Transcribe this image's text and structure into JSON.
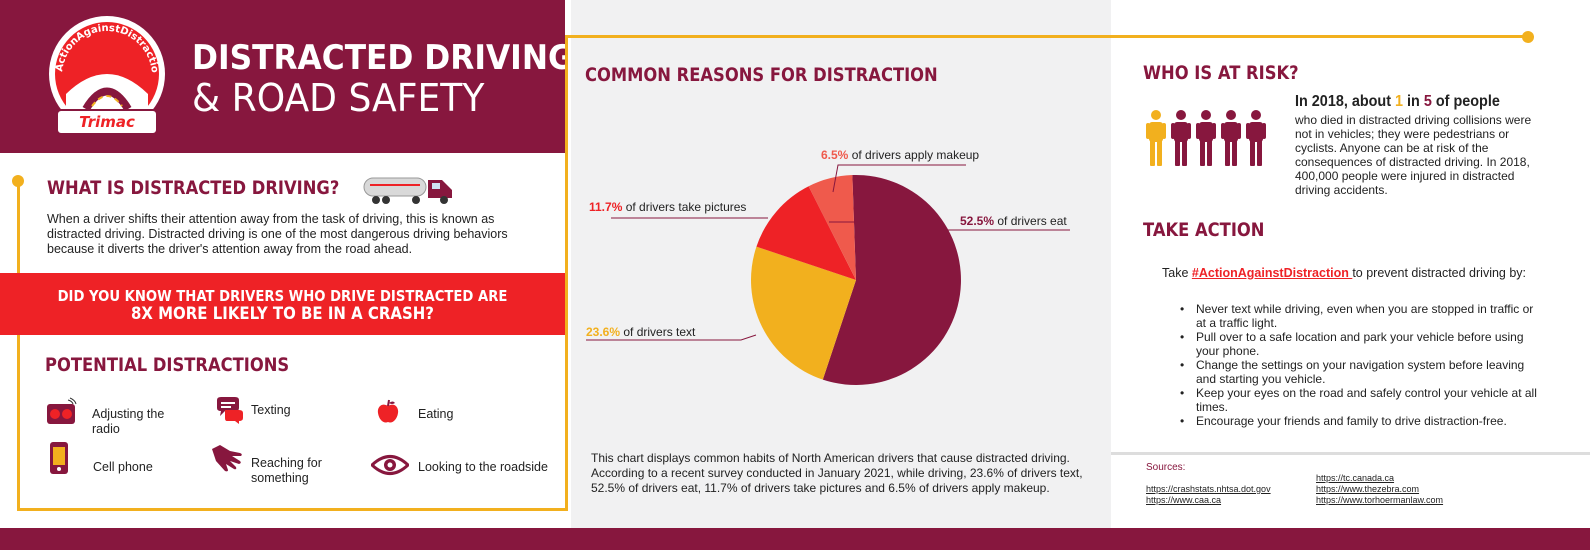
{
  "header": {
    "title_line1": "DISTRACTED DRIVING",
    "title_line2": "& ROAD SAFETY",
    "logo_hashtag": "#ActionAgainstDistraction",
    "logo_brand": "Trimac"
  },
  "what_is": {
    "heading": "WHAT IS DISTRACTED DRIVING?",
    "body": "When a driver shifts their attention away from the task of driving, this is known as distracted driving. Distracted driving is one of the most dangerous driving behaviors because it diverts the driver's attention away from the road ahead."
  },
  "did_you_know": {
    "line1": "DID YOU KNOW THAT DRIVERS WHO DRIVE DISTRACTED ARE",
    "line2": "8X MORE LIKELY TO BE IN A CRASH?"
  },
  "potential": {
    "heading": "POTENTIAL DISTRACTIONS",
    "items": [
      {
        "label": "Adjusting the radio",
        "icon": "radio-icon"
      },
      {
        "label": "Texting",
        "icon": "chat-bubbles-icon"
      },
      {
        "label": "Eating",
        "icon": "apple-icon"
      },
      {
        "label": "Cell phone",
        "icon": "cell-phone-icon"
      },
      {
        "label": "Reaching for something",
        "icon": "reaching-hand-icon"
      },
      {
        "label": "Looking to the roadside",
        "icon": "eye-icon"
      }
    ]
  },
  "reasons": {
    "heading": "COMMON REASONS FOR DISTRACTION",
    "labels": [
      {
        "pct": "52.5%",
        "text": " of drivers eat"
      },
      {
        "pct": "23.6%",
        "text": " of drivers text"
      },
      {
        "pct": "11.7%",
        "text": " of drivers take pictures"
      },
      {
        "pct": "6.5%",
        "text": " of drivers apply makeup"
      }
    ],
    "note": "This chart displays common habits of North American drivers that cause distracted driving. According to a recent  survey conducted in January 2021, while driving, 23.6% of drivers text, 52.5% of drivers eat, 11.7% of drivers take pictures and 6.5% of drivers apply makeup."
  },
  "chart_data": {
    "type": "pie",
    "categories": [
      "of drivers eat",
      "of drivers text",
      "of drivers take pictures",
      "of drivers apply makeup"
    ],
    "values": [
      52.5,
      23.6,
      11.7,
      6.5
    ],
    "colors": [
      "#87173e",
      "#f2b01e",
      "#ee2226",
      "#ef5a4c"
    ]
  },
  "risk": {
    "heading": "WHO IS AT RISK?",
    "stat_prefix": "In 2018, about ",
    "stat_num1": "1",
    "stat_mid": " in ",
    "stat_num2": "5",
    "stat_suffix": " of people",
    "body": "who died in distracted driving collisions were not in vehicles; they were pedestrians or cyclists. Anyone can be at risk of the consequences of distracted driving. In 2018, 400,000 people were injured in distracted driving accidents.",
    "people_highlighted": 1,
    "people_total": 5,
    "colors": {
      "highlight": "#f2b01e",
      "normal": "#87173e"
    }
  },
  "take_action": {
    "heading": "TAKE ACTION",
    "prefix": "Take ",
    "hashtag": "#ActionAgainstDistraction ",
    "suffix": " to prevent distracted driving by:",
    "bullets": [
      "Never text while driving, even when you are stopped in traffic or at a traffic light.",
      "Pull over to a safe location and park your vehicle before using your phone.",
      "Change the settings on your navigation system before leaving and starting you vehicle.",
      "Keep your eyes on the road and safely control your vehicle at all times.",
      "Encourage your friends and family to drive distraction-free."
    ]
  },
  "sources": {
    "label": "Sources:",
    "links": [
      "https://crashstats.nhtsa.dot.gov",
      "https://www.caa.ca",
      "https://tc.canada.ca",
      "https://www.thezebra.com",
      "https://www.torhoermanlaw.com"
    ]
  },
  "colors": {
    "maroon": "#87173e",
    "gold": "#f2b01e",
    "red": "#ee2226",
    "panel": "#f1f1f2"
  }
}
